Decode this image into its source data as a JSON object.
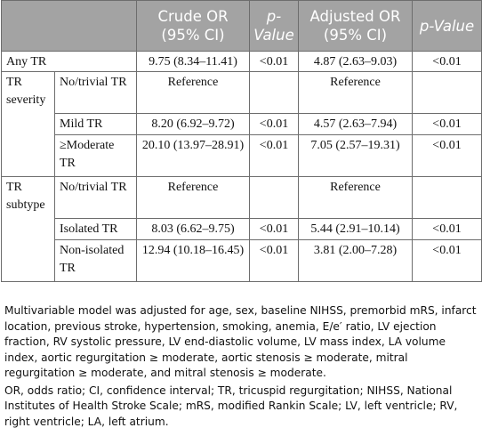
{
  "table": {
    "headers": {
      "crude_or": "Crude OR (95% CI)",
      "p1": "p-Value",
      "adjusted_or": "Adjusted OR (95% CI)",
      "p2": "p-Value"
    },
    "rows": [
      {
        "group": "Any TR",
        "sub": "",
        "crude": "9.75 (8.34–11.41)",
        "p_crude": "<0.01",
        "adjusted": "4.87 (2.63–9.03)",
        "p_adj": "<0.01"
      },
      {
        "group": "TR severity",
        "sub": "No/trivial TR",
        "crude": "Reference",
        "p_crude": "",
        "adjusted": "Reference",
        "p_adj": ""
      },
      {
        "group": "",
        "sub": "Mild TR",
        "crude": "8.20 (6.92–9.72)",
        "p_crude": "<0.01",
        "adjusted": "4.57 (2.63–7.94)",
        "p_adj": "<0.01"
      },
      {
        "group": "",
        "sub": "≥Moderate TR",
        "crude": "20.10 (13.97–28.91)",
        "p_crude": "<0.01",
        "adjusted": "7.05 (2.57–19.31)",
        "p_adj": "<0.01"
      },
      {
        "group": "TR subtype",
        "sub": "No/trivial TR",
        "crude": "Reference",
        "p_crude": "",
        "adjusted": "Reference",
        "p_adj": ""
      },
      {
        "group": "",
        "sub": "Isolated TR",
        "crude": "8.03 (6.62–9.75)",
        "p_crude": "<0.01",
        "adjusted": "5.44 (2.91–10.14)",
        "p_adj": "<0.01"
      },
      {
        "group": "",
        "sub": "Non-isolated TR",
        "crude": "12.94 (10.18–16.45)",
        "p_crude": "<0.01",
        "adjusted": "3.81 (2.00–7.28)",
        "p_adj": "<0.01"
      }
    ]
  },
  "notes": {
    "model": "Multivariable model was adjusted for age, sex, baseline NIHSS, premorbid mRS, infarct location, previous stroke, hypertension, smoking, anemia, E/e′ ratio, LV ejection fraction, RV systolic pressure, LV end-diastolic volume, LV mass index, LA volume index, aortic regurgitation ≥ moderate, aortic stenosis ≥ moderate, mitral regurgitation ≥ moderate, and mitral stenosis ≥ moderate.",
    "abbreviations": "OR, odds ratio; CI, confidence interval; TR, tricuspid regurgitation; NIHSS, National Institutes of Health Stroke Scale; mRS, modified Rankin Scale; LV, left ventricle; RV, right ventricle; LA, left atrium."
  }
}
